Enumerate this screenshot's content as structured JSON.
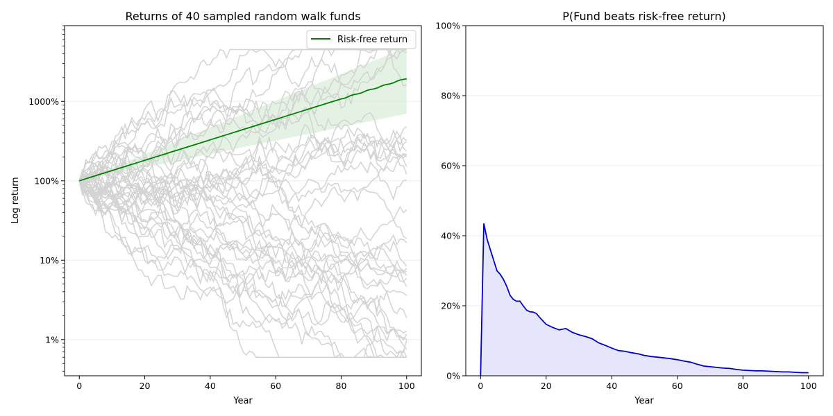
{
  "chart_data": [
    {
      "type": "line",
      "title": "Returns of 40 sampled random walk funds",
      "xlabel": "Year",
      "ylabel": "Log return",
      "yscale": "log",
      "xlim": [
        -4.5,
        104.5
      ],
      "ylim": [
        0.0035,
        90
      ],
      "xticks": [
        0,
        20,
        40,
        60,
        80,
        100
      ],
      "yticks": [
        {
          "value": 0.01,
          "label": "1%"
        },
        {
          "value": 0.1,
          "label": "10%"
        },
        {
          "value": 1,
          "label": "100%"
        },
        {
          "value": 10,
          "label": "1000%"
        }
      ],
      "grid": "horizontal",
      "legend": {
        "position": "top-right",
        "entries": [
          "Risk-free return"
        ]
      },
      "risk_free": {
        "name": "Risk-free return",
        "start": 1.0,
        "end": 19.5,
        "band_low_end": 7.0,
        "band_high_end": 48.0,
        "years": [
          0,
          100
        ]
      },
      "random_walks": {
        "count": 40,
        "years": [
          0,
          100
        ],
        "description_values": "40 gray random-walk fund paths, each starting at 100% and spreading roughly between 1% and 4000%"
      },
      "colors": {
        "risk_free": "#008000",
        "band": "#d9eed9",
        "walks": "#d3d3d3"
      }
    },
    {
      "type": "area",
      "title": "P(Fund beats risk-free return)",
      "xlabel": "Year",
      "xlim": [
        -4.5,
        104.5
      ],
      "ylim": [
        0,
        1
      ],
      "xticks": [
        0,
        20,
        40,
        60,
        80,
        100
      ],
      "yticks": [
        {
          "value": 0,
          "label": "0%"
        },
        {
          "value": 0.2,
          "label": "20%"
        },
        {
          "value": 0.4,
          "label": "40%"
        },
        {
          "value": 0.6,
          "label": "60%"
        },
        {
          "value": 0.8,
          "label": "80%"
        },
        {
          "value": 1.0,
          "label": "100%"
        }
      ],
      "grid": "horizontal",
      "x": [
        0,
        1,
        2,
        3,
        4,
        5,
        6,
        7,
        8,
        9,
        10,
        11,
        12,
        13,
        14,
        15,
        16,
        17,
        18,
        19,
        20,
        22,
        24,
        26,
        28,
        30,
        32,
        34,
        36,
        38,
        40,
        42,
        44,
        46,
        48,
        50,
        52,
        54,
        56,
        58,
        60,
        62,
        64,
        66,
        68,
        70,
        72,
        74,
        76,
        78,
        80,
        82,
        84,
        86,
        88,
        90,
        92,
        94,
        96,
        98,
        100
      ],
      "y": [
        0.0,
        0.435,
        0.39,
        0.36,
        0.33,
        0.3,
        0.29,
        0.275,
        0.255,
        0.23,
        0.218,
        0.213,
        0.213,
        0.2,
        0.188,
        0.183,
        0.182,
        0.178,
        0.167,
        0.157,
        0.147,
        0.138,
        0.131,
        0.135,
        0.124,
        0.117,
        0.112,
        0.106,
        0.094,
        0.087,
        0.079,
        0.072,
        0.07,
        0.066,
        0.063,
        0.058,
        0.055,
        0.053,
        0.051,
        0.049,
        0.046,
        0.042,
        0.039,
        0.033,
        0.028,
        0.026,
        0.024,
        0.022,
        0.021,
        0.018,
        0.016,
        0.015,
        0.014,
        0.014,
        0.013,
        0.012,
        0.011,
        0.011,
        0.01,
        0.009,
        0.009
      ],
      "colors": {
        "line": "#0000cc",
        "fill": "#e5e5fb"
      }
    }
  ]
}
